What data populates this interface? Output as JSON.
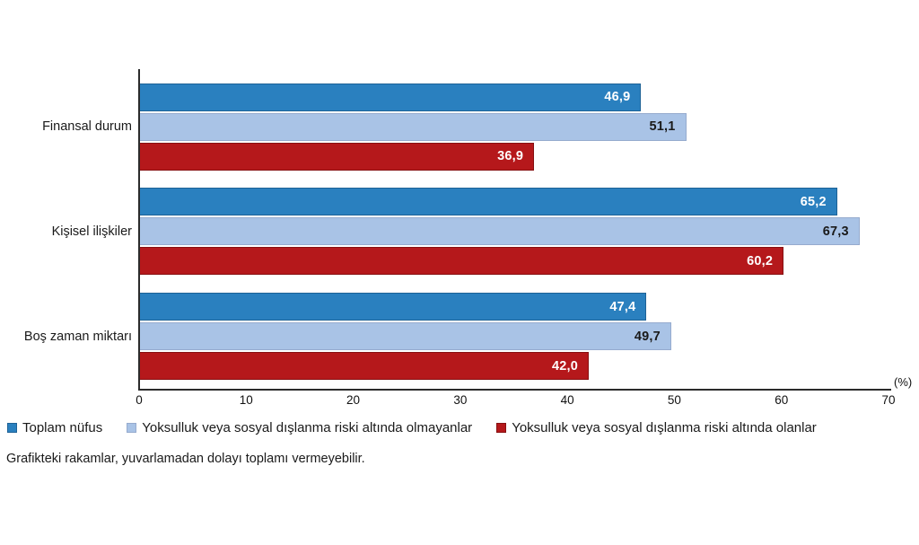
{
  "chart_data": {
    "type": "bar",
    "orientation": "horizontal",
    "title": "",
    "categories": [
      "Finansal durum",
      "Kişisel ilişkiler",
      "Boş zaman miktarı"
    ],
    "series": [
      {
        "name": "Toplam nüfus",
        "values": [
          46.9,
          65.2,
          47.4
        ],
        "display_labels": [
          "46,9",
          "65,2",
          "47,4"
        ],
        "color": "#2A80BF",
        "border_color": "#1E6296",
        "label_color": "#ffffff"
      },
      {
        "name": "Yoksulluk veya sosyal dışlanma riski altında olmayanlar",
        "values": [
          51.1,
          67.3,
          49.7
        ],
        "display_labels": [
          "51,1",
          "67,3",
          "49,7"
        ],
        "color": "#A9C3E6",
        "border_color": "#96ABCE",
        "label_color": "#1a1a1a"
      },
      {
        "name": "Yoksulluk veya sosyal dışlanma riski altında olanlar",
        "values": [
          36.9,
          60.2,
          42.0
        ],
        "display_labels": [
          "36,9",
          "60,2",
          "42,0"
        ],
        "color": "#B5181B",
        "border_color": "#871012",
        "label_color": "#ffffff"
      }
    ],
    "x_axis": {
      "min": 0,
      "max": 70,
      "ticks": [
        "0",
        "10",
        "20",
        "30",
        "40",
        "50",
        "60",
        "70"
      ],
      "unit_label": "(%)"
    },
    "grid": false,
    "legend_position": "bottom",
    "axis_color": "#2b2b2b"
  },
  "footnote": "Grafikteki rakamlar, yuvarlamadan dolayı toplamı vermeyebilir."
}
